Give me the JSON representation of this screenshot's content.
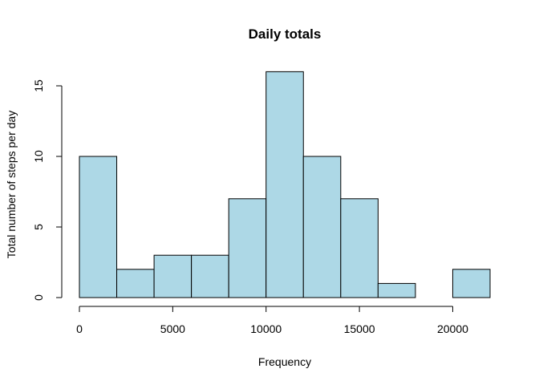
{
  "chart_data": {
    "type": "bar",
    "title": "Daily totals",
    "xlabel": "Frequency",
    "ylabel": "Total number of steps per day",
    "bins": [
      {
        "start": 0,
        "end": 2000,
        "count": 10
      },
      {
        "start": 2000,
        "end": 4000,
        "count": 2
      },
      {
        "start": 4000,
        "end": 6000,
        "count": 3
      },
      {
        "start": 6000,
        "end": 8000,
        "count": 3
      },
      {
        "start": 8000,
        "end": 10000,
        "count": 7
      },
      {
        "start": 10000,
        "end": 12000,
        "count": 16
      },
      {
        "start": 12000,
        "end": 14000,
        "count": 10
      },
      {
        "start": 14000,
        "end": 16000,
        "count": 7
      },
      {
        "start": 16000,
        "end": 18000,
        "count": 1
      },
      {
        "start": 18000,
        "end": 20000,
        "count": 0
      },
      {
        "start": 20000,
        "end": 22000,
        "count": 2
      }
    ],
    "xlim": [
      0,
      22000
    ],
    "ylim": [
      0,
      16
    ],
    "x_ticks": [
      0,
      5000,
      10000,
      15000,
      20000
    ],
    "y_ticks": [
      0,
      5,
      10,
      15
    ],
    "bar_color": "#add8e6",
    "grid": false,
    "legend": "none"
  }
}
